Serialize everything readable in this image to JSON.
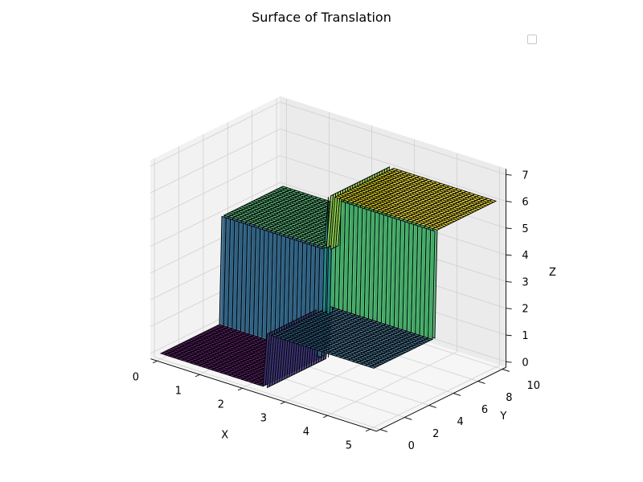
{
  "chart_data": {
    "type": "surface3d",
    "title": "Surface of Translation",
    "xlabel": "X",
    "ylabel": "Y",
    "zlabel": "Z",
    "xlim": [
      0,
      5
    ],
    "ylim": [
      0,
      10
    ],
    "zlim": [
      0,
      7
    ],
    "x_ticks": [
      "0",
      "1",
      "2",
      "3",
      "4",
      "5"
    ],
    "y_ticks": [
      "0",
      "2",
      "4",
      "6",
      "8",
      "10"
    ],
    "z_ticks": [
      "0",
      "1",
      "2",
      "3",
      "4",
      "5",
      "6",
      "7"
    ],
    "surface": {
      "description_levels": [
        {
          "x_range": [
            0,
            2.5
          ],
          "y_range": [
            0,
            5
          ],
          "z": 0
        },
        {
          "x_range": [
            2.5,
            5
          ],
          "y_range": [
            0,
            5
          ],
          "z": 2
        },
        {
          "x_range": [
            0,
            2.5
          ],
          "y_range": [
            5,
            10
          ],
          "z": 4
        },
        {
          "x_range": [
            2.5,
            5
          ],
          "y_range": [
            5,
            10
          ],
          "z": 6
        }
      ],
      "colormap": "viridis",
      "edge_color": "#000000"
    },
    "grid": true,
    "legend": "top-right (empty)"
  }
}
